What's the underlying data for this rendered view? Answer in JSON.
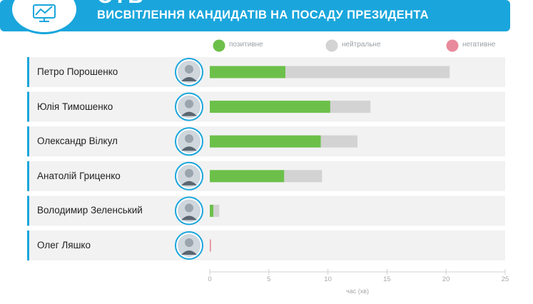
{
  "header": {
    "channel": "СТБ",
    "title": "ВИСВІТЛЕННЯ КАНДИДАТІВ НА ПОСАДУ ПРЕЗИДЕНТА"
  },
  "colors": {
    "header_bg": "#1aa6dc",
    "positive": "#6cc04a",
    "neutral": "#d3d3d3",
    "negative": "#e88a9a",
    "row_bg": "#f2f2f2",
    "row_accent": "#1aa6dc"
  },
  "chart_data": {
    "type": "bar",
    "orientation": "horizontal",
    "stacked": true,
    "categories": [
      "Петро Порошенко",
      "Юлія Тимошенко",
      "Олександр Вілкул",
      "Анатолій Гриценко",
      "Володимир Зеленський",
      "Олег Ляшко"
    ],
    "series": [
      {
        "name": "позитивне",
        "color": "#6cc04a",
        "values": [
          6.4,
          10.2,
          9.4,
          6.3,
          0.3,
          0
        ]
      },
      {
        "name": "нейтральне",
        "color": "#d3d3d3",
        "values": [
          13.9,
          3.4,
          3.1,
          3.2,
          0.5,
          0
        ]
      },
      {
        "name": "негативне",
        "color": "#e88a9a",
        "values": [
          0,
          0,
          0,
          0,
          0,
          0.1
        ]
      }
    ],
    "xlabel": "час (хв)",
    "ylabel": "",
    "xlim": [
      0,
      25
    ],
    "xticks": [
      0,
      5,
      10,
      15,
      20,
      25
    ],
    "legend_position": "top",
    "grid": false
  }
}
